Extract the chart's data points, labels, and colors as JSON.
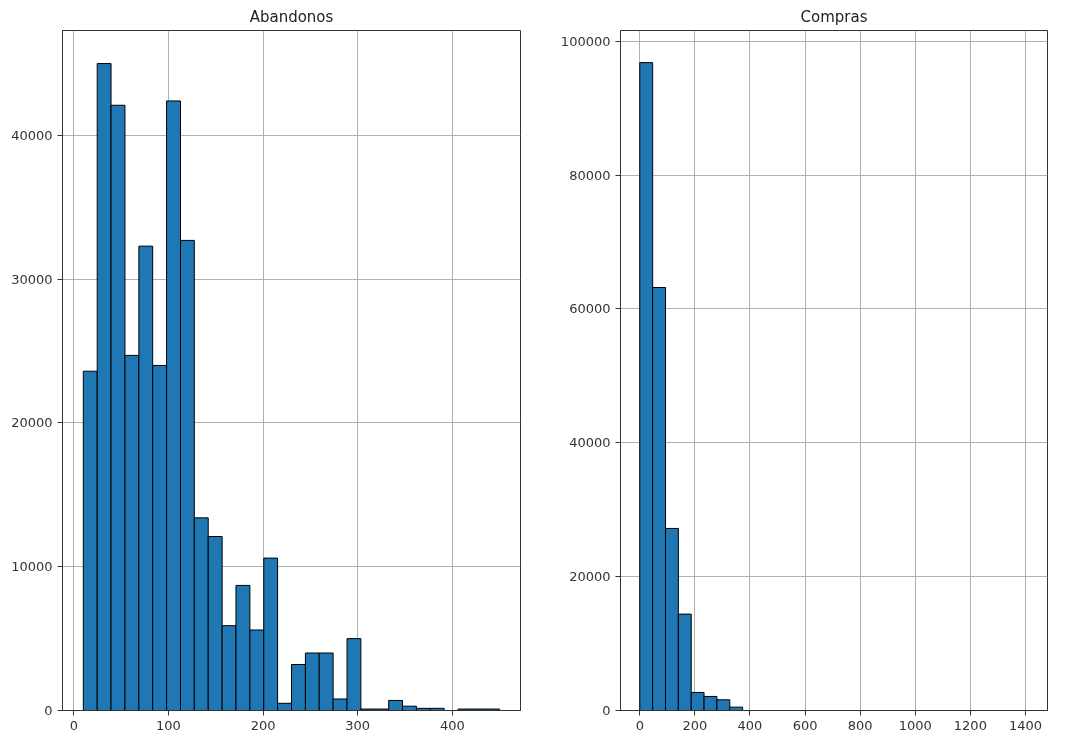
{
  "chart_data": [
    {
      "type": "histogram",
      "title": "Abandonos",
      "color": "#1f77b4",
      "bins": [
        10,
        24.7,
        39.3,
        54,
        68.7,
        83.3,
        98,
        112.7,
        127.3,
        142,
        156.7,
        171.3,
        186,
        200.7,
        215.3,
        230,
        244.7,
        259.3,
        274,
        288.7,
        303.3,
        318,
        332.7,
        347.3,
        362,
        376.7,
        391.3,
        406,
        420.7,
        435.3,
        450
      ],
      "values": [
        23600,
        45000,
        42100,
        24700,
        32300,
        24000,
        42400,
        32700,
        13400,
        12100,
        5900,
        8700,
        5600,
        10600,
        500,
        3200,
        4000,
        4000,
        800,
        5000,
        100,
        100,
        700,
        300,
        150,
        150,
        0,
        100,
        100,
        100
      ],
      "xlim": [
        -12,
        472
      ],
      "xticks": [
        0,
        100,
        200,
        300,
        400
      ],
      "ylim": [
        0,
        47300
      ],
      "yticks": [
        0,
        10000,
        20000,
        30000,
        40000
      ],
      "grid": true
    },
    {
      "type": "histogram",
      "title": "Compras",
      "color": "#1f77b4",
      "bins": [
        0,
        46.7,
        93.3,
        140,
        186.7,
        233.3,
        280,
        326.7,
        373.3,
        420,
        466.7,
        513.3,
        560,
        606.7,
        653.3,
        700,
        746.7,
        793.3,
        840,
        886.7,
        933.3,
        980,
        1026.7,
        1073.3,
        1120,
        1166.7,
        1213.3,
        1260,
        1306.7,
        1353.3,
        1400
      ],
      "values": [
        96800,
        63200,
        27200,
        14400,
        2700,
        2100,
        1600,
        500,
        0,
        0,
        0,
        0,
        0,
        0,
        0,
        0,
        0,
        0,
        0,
        0,
        0,
        0,
        0,
        0,
        0,
        0,
        0,
        0,
        0,
        0
      ],
      "xlim": [
        -70,
        1480
      ],
      "xticks": [
        0,
        200,
        400,
        600,
        800,
        1000,
        1200,
        1400
      ],
      "ylim": [
        0,
        101600
      ],
      "yticks": [
        0,
        20000,
        40000,
        60000,
        80000,
        100000
      ],
      "grid": true
    }
  ]
}
